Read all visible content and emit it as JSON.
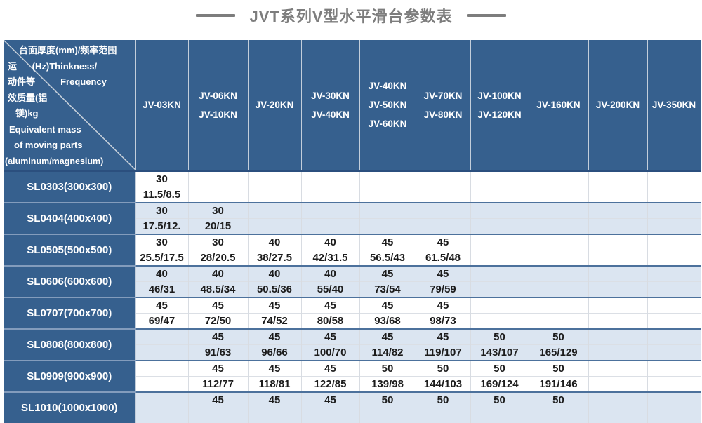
{
  "page": {
    "title": "JVT系列V型水平滑台参数表"
  },
  "colors": {
    "header_bg": "#36608E",
    "row_alt_bg": "#dbe5f1",
    "title_color": "#7d7d7d",
    "data_text": "#1c1c1c"
  },
  "table": {
    "corner_lines": [
      "台面厚度(mm)/频率范围",
      "运      (Hz)Thinkness/",
      "动件等          Frequency",
      "效质量(铝",
      "镁)kg",
      "Equivalent mass",
      "of moving parts",
      "(aluminum/magnesium)"
    ],
    "columns": [
      {
        "lines": [
          "JV-03KN"
        ]
      },
      {
        "lines": [
          "JV-06KN",
          "JV-10KN"
        ]
      },
      {
        "lines": [
          "JV-20KN"
        ]
      },
      {
        "lines": [
          "JV-30KN",
          "JV-40KN"
        ]
      },
      {
        "lines": [
          "JV-40KN",
          "JV-50KN",
          "JV-60KN"
        ]
      },
      {
        "lines": [
          "JV-70KN",
          "JV-80KN"
        ]
      },
      {
        "lines": [
          "JV-100KN",
          "JV-120KN"
        ]
      },
      {
        "lines": [
          "JV-160KN"
        ]
      },
      {
        "lines": [
          "JV-200KN"
        ]
      },
      {
        "lines": [
          "JV-350KN"
        ]
      }
    ],
    "rows": [
      {
        "label": "SL0303(300x300)",
        "alt": false,
        "cells": [
          [
            "30",
            "11.5/8.5"
          ],
          [
            "",
            ""
          ],
          [
            "",
            ""
          ],
          [
            "",
            ""
          ],
          [
            "",
            ""
          ],
          [
            "",
            ""
          ],
          [
            "",
            ""
          ],
          [
            "",
            ""
          ],
          [
            "",
            ""
          ],
          [
            "",
            ""
          ]
        ]
      },
      {
        "label": "SL0404(400x400)",
        "alt": true,
        "cells": [
          [
            "30",
            "17.5/12."
          ],
          [
            "30",
            "20/15"
          ],
          [
            "",
            ""
          ],
          [
            "",
            ""
          ],
          [
            "",
            ""
          ],
          [
            "",
            ""
          ],
          [
            "",
            ""
          ],
          [
            "",
            ""
          ],
          [
            "",
            ""
          ],
          [
            "",
            ""
          ]
        ]
      },
      {
        "label": "SL0505(500x500)",
        "alt": false,
        "cells": [
          [
            "30",
            "25.5/17.5"
          ],
          [
            "30",
            "28/20.5"
          ],
          [
            "40",
            "38/27.5"
          ],
          [
            "40",
            "42/31.5"
          ],
          [
            "45",
            "56.5/43"
          ],
          [
            "45",
            "61.5/48"
          ],
          [
            "",
            ""
          ],
          [
            "",
            ""
          ],
          [
            "",
            ""
          ],
          [
            "",
            ""
          ]
        ]
      },
      {
        "label": "SL0606(600x600)",
        "alt": true,
        "cells": [
          [
            "40",
            "46/31"
          ],
          [
            "40",
            "48.5/34"
          ],
          [
            "40",
            "50.5/36"
          ],
          [
            "40",
            "55/40"
          ],
          [
            "45",
            "73/54"
          ],
          [
            "45",
            "79/59"
          ],
          [
            "",
            ""
          ],
          [
            "",
            ""
          ],
          [
            "",
            ""
          ],
          [
            "",
            ""
          ]
        ]
      },
      {
        "label": "SL0707(700x700)",
        "alt": false,
        "cells": [
          [
            "45",
            "69/47"
          ],
          [
            "45",
            "72/50"
          ],
          [
            "45",
            "74/52"
          ],
          [
            "45",
            "80/58"
          ],
          [
            "45",
            "93/68"
          ],
          [
            "45",
            "98/73"
          ],
          [
            "",
            ""
          ],
          [
            "",
            ""
          ],
          [
            "",
            ""
          ],
          [
            "",
            ""
          ]
        ]
      },
      {
        "label": "SL0808(800x800)",
        "alt": true,
        "cells": [
          [
            "",
            ""
          ],
          [
            "45",
            "91/63"
          ],
          [
            "45",
            "96/66"
          ],
          [
            "45",
            "100/70"
          ],
          [
            "45",
            "114/82"
          ],
          [
            "45",
            "119/107"
          ],
          [
            "50",
            "143/107"
          ],
          [
            "50",
            "165/129"
          ],
          [
            "",
            ""
          ],
          [
            "",
            ""
          ]
        ]
      },
      {
        "label": "SL0909(900x900)",
        "alt": false,
        "cells": [
          [
            "",
            ""
          ],
          [
            "45",
            "112/77"
          ],
          [
            "45",
            "118/81"
          ],
          [
            "45",
            "122/85"
          ],
          [
            "50",
            "139/98"
          ],
          [
            "50",
            "144/103"
          ],
          [
            "50",
            "169/124"
          ],
          [
            "50",
            "191/146"
          ],
          [
            "",
            ""
          ],
          [
            "",
            ""
          ]
        ]
      },
      {
        "label": "SL1010(1000x1000)",
        "alt": true,
        "cells": [
          [
            "",
            ""
          ],
          [
            "45",
            ""
          ],
          [
            "45",
            ""
          ],
          [
            "45",
            ""
          ],
          [
            "50",
            ""
          ],
          [
            "50",
            ""
          ],
          [
            "50",
            ""
          ],
          [
            "50",
            ""
          ],
          [
            "",
            ""
          ],
          [
            "",
            ""
          ]
        ]
      }
    ]
  }
}
